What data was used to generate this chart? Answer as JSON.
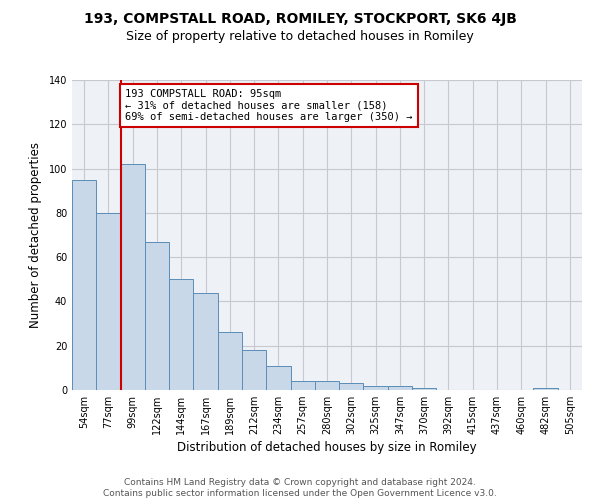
{
  "title1": "193, COMPSTALL ROAD, ROMILEY, STOCKPORT, SK6 4JB",
  "title2": "Size of property relative to detached houses in Romiley",
  "xlabel": "Distribution of detached houses by size in Romiley",
  "ylabel": "Number of detached properties",
  "bar_labels": [
    "54sqm",
    "77sqm",
    "99sqm",
    "122sqm",
    "144sqm",
    "167sqm",
    "189sqm",
    "212sqm",
    "234sqm",
    "257sqm",
    "280sqm",
    "302sqm",
    "325sqm",
    "347sqm",
    "370sqm",
    "392sqm",
    "415sqm",
    "437sqm",
    "460sqm",
    "482sqm",
    "505sqm"
  ],
  "bar_values": [
    95,
    80,
    102,
    67,
    50,
    44,
    26,
    18,
    11,
    4,
    4,
    3,
    2,
    2,
    1,
    0,
    0,
    0,
    0,
    1,
    0
  ],
  "bar_color": "#c8d8e8",
  "bar_edge_color": "#5b8db8",
  "red_line_index": 2,
  "annotation_text": "193 COMPSTALL ROAD: 95sqm\n← 31% of detached houses are smaller (158)\n69% of semi-detached houses are larger (350) →",
  "annotation_box_color": "#cc0000",
  "ylim": [
    0,
    140
  ],
  "yticks": [
    0,
    20,
    40,
    60,
    80,
    100,
    120,
    140
  ],
  "grid_color": "#c8c8d0",
  "bg_color": "#eef2f7",
  "footer_text": "Contains HM Land Registry data © Crown copyright and database right 2024.\nContains public sector information licensed under the Open Government Licence v3.0.",
  "title1_fontsize": 10,
  "title2_fontsize": 9,
  "xlabel_fontsize": 8.5,
  "ylabel_fontsize": 8.5,
  "tick_fontsize": 7,
  "footer_fontsize": 6.5,
  "annotation_fontsize": 7.5
}
